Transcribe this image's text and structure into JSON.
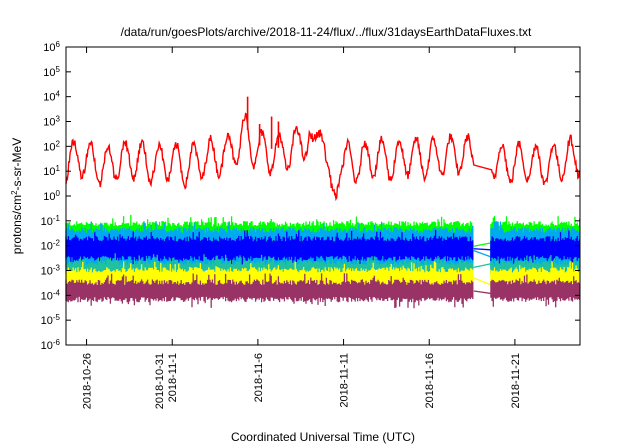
{
  "chart_data": {
    "type": "line",
    "title": "/data/run/goesPlots/archive/2018-11-24/flux/../flux/31daysEarthDataFluxes.txt",
    "xlabel": "Coordinated Universal Time (UTC)",
    "ylabel": "protons/cm2-s-sr-MeV",
    "ylabel_parts": {
      "base": "protons/cm",
      "sup": "2",
      "rest": "-s-sr-MeV"
    },
    "yscale": "log",
    "ylim_exponents": [
      -6,
      6
    ],
    "y_ticks": [
      {
        "exp": -6,
        "base": "10",
        "sup": "-6"
      },
      {
        "exp": -5,
        "base": "10",
        "sup": "-5"
      },
      {
        "exp": -4,
        "base": "10",
        "sup": "-4"
      },
      {
        "exp": -3,
        "base": "10",
        "sup": "-3"
      },
      {
        "exp": -2,
        "base": "10",
        "sup": "-2"
      },
      {
        "exp": -1,
        "base": "10",
        "sup": "-1"
      },
      {
        "exp": 0,
        "base": "10",
        "sup": "0"
      },
      {
        "exp": 1,
        "base": "10",
        "sup": "1"
      },
      {
        "exp": 2,
        "base": "10",
        "sup": "2"
      },
      {
        "exp": 3,
        "base": "10",
        "sup": "3"
      },
      {
        "exp": 4,
        "base": "10",
        "sup": "4"
      },
      {
        "exp": 5,
        "base": "10",
        "sup": "5"
      },
      {
        "exp": 6,
        "base": "10",
        "sup": "6"
      }
    ],
    "xlim_days": [
      0,
      30
    ],
    "x_ticks": [
      {
        "day": 1.2,
        "lines": [
          "2018-10-26"
        ]
      },
      {
        "day": 6.2,
        "lines": [
          "2018-10-31",
          "2018-11-1"
        ]
      },
      {
        "day": 11.2,
        "lines": [
          "2018-11-6"
        ]
      },
      {
        "day": 16.2,
        "lines": [
          "2018-11-11"
        ]
      },
      {
        "day": 21.2,
        "lines": [
          "2018-11-16"
        ]
      },
      {
        "day": 26.2,
        "lines": [
          "2018-11-21"
        ]
      }
    ],
    "grid": false,
    "data_gap_days": [
      23.8,
      24.8
    ],
    "series": [
      {
        "color": "#ff0000",
        "role": "high-energy-red",
        "profile": [
          [
            0,
            1.3
          ],
          [
            1,
            1.6
          ],
          [
            2,
            1.2
          ],
          [
            3,
            1.4
          ],
          [
            4,
            1.5
          ],
          [
            5,
            1.3
          ],
          [
            6,
            1.4
          ],
          [
            7,
            1.2
          ],
          [
            8,
            1.5
          ],
          [
            9,
            1.6
          ],
          [
            10,
            2.0
          ],
          [
            10.5,
            2.6
          ],
          [
            11,
            1.9
          ],
          [
            12,
            1.7
          ],
          [
            13,
            1.8
          ],
          [
            14,
            2.3
          ],
          [
            14.5,
            2.5
          ],
          [
            15,
            2.3
          ],
          [
            15.5,
            0.5
          ],
          [
            16,
            1.4
          ],
          [
            17,
            1.3
          ],
          [
            18,
            1.6
          ],
          [
            19,
            1.4
          ],
          [
            20,
            1.6
          ],
          [
            21,
            1.5
          ],
          [
            22,
            1.6
          ],
          [
            23,
            1.7
          ],
          [
            23.8,
            1.6
          ],
          [
            24.8,
            1.7
          ],
          [
            25,
            1.4
          ],
          [
            26,
            1.3
          ],
          [
            27,
            1.4
          ],
          [
            28,
            1.2
          ],
          [
            29,
            1.5
          ],
          [
            30,
            1.6
          ]
        ],
        "spikes": [
          {
            "day": 10.6,
            "exp": 4.0
          },
          {
            "day": 12.0,
            "exp": 3.2
          },
          {
            "day": 12.4,
            "exp": 3.0
          },
          {
            "day": 11.3,
            "exp": 2.9
          }
        ]
      },
      {
        "color": "#00ff00",
        "role": "band-green",
        "band_exponents": [
          -2.9,
          -1.15
        ]
      },
      {
        "color": "#00aaee",
        "role": "band-cyan",
        "band_exponents": [
          -3.0,
          -1.4
        ]
      },
      {
        "color": "#0000ff",
        "role": "band-blue",
        "band_exponents": [
          -2.5,
          -1.75
        ]
      },
      {
        "color": "#20c0a0",
        "role": "band-teal",
        "band_exponents": [
          -3.05,
          -2.7
        ]
      },
      {
        "color": "#ffff00",
        "role": "band-yellow",
        "band_exponents": [
          -3.6,
          -3.0
        ]
      },
      {
        "color": "#993366",
        "role": "band-maroon",
        "band_exponents": [
          -4.15,
          -3.5
        ]
      }
    ]
  }
}
